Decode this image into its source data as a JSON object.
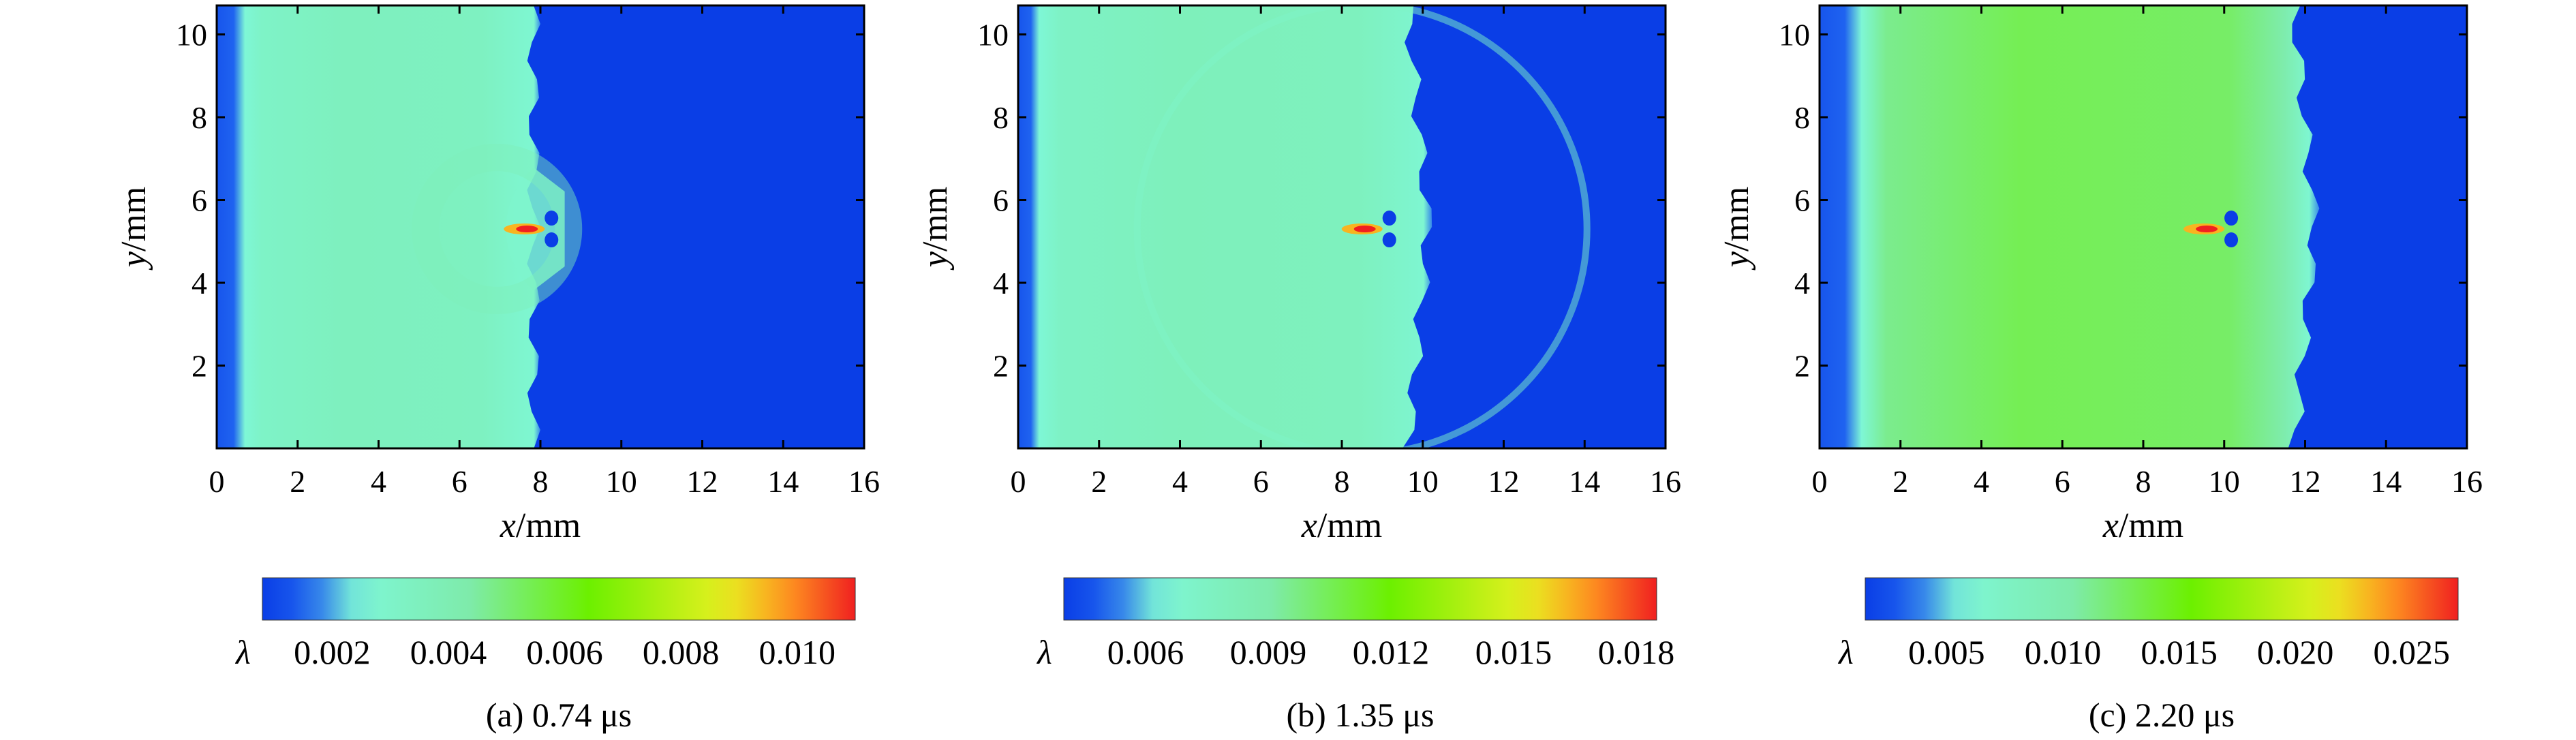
{
  "chart_data": [
    {
      "type": "heatmap",
      "caption": "(a) 0.74 μs",
      "xlabel": {
        "var": "x",
        "unit": "/mm"
      },
      "ylabel": {
        "var": "y",
        "unit": "/mm"
      },
      "xlim": [
        0,
        16
      ],
      "ylim": [
        0,
        10.7
      ],
      "xticks": [
        0,
        2,
        4,
        6,
        8,
        10,
        12,
        14,
        16
      ],
      "yticks": [
        2,
        4,
        6,
        8,
        10
      ],
      "colorbar": {
        "symbol": "λ",
        "ticks": [
          "0.002",
          "0.004",
          "0.006",
          "0.008",
          "0.010"
        ],
        "range": [
          0.0008,
          0.011
        ]
      },
      "field": {
        "background": 0.0,
        "band": {
          "x_start": 0,
          "x_end": 8.0,
          "value": 0.0035,
          "front_edge_x": 0.7
        },
        "shock_front_x": 8.0,
        "cap_x": 8.6,
        "crack_tip": {
          "x": 7.6,
          "y": 5.3
        }
      }
    },
    {
      "type": "heatmap",
      "caption": "(b) 1.35 μs",
      "xlabel": {
        "var": "x",
        "unit": "/mm"
      },
      "ylabel": {
        "var": "y",
        "unit": "/mm"
      },
      "xlim": [
        0,
        16
      ],
      "ylim": [
        0,
        10.7
      ],
      "xticks": [
        0,
        2,
        4,
        6,
        8,
        10,
        12,
        14,
        16
      ],
      "yticks": [
        2,
        4,
        6,
        8,
        10
      ],
      "colorbar": {
        "symbol": "λ",
        "ticks": [
          "0.006",
          "0.009",
          "0.012",
          "0.015",
          "0.018"
        ],
        "range": [
          0.004,
          0.0185
        ]
      },
      "field": {
        "background": 0.0,
        "band": {
          "x_start": 0,
          "x_end": 9.8,
          "value": 0.008,
          "front_edge_x": 0.5
        },
        "shock_front_x": 9.8,
        "crack_tip": {
          "x": 8.5,
          "y": 5.3
        }
      }
    },
    {
      "type": "heatmap",
      "caption": "(c) 2.20 μs",
      "xlabel": {
        "var": "x",
        "unit": "/mm"
      },
      "ylabel": {
        "var": "y",
        "unit": "/mm"
      },
      "xlim": [
        0,
        16
      ],
      "ylim": [
        0,
        10.7
      ],
      "xticks": [
        0,
        2,
        4,
        6,
        8,
        10,
        12,
        14,
        16
      ],
      "yticks": [
        2,
        4,
        6,
        8,
        10
      ],
      "colorbar": {
        "symbol": "λ",
        "ticks": [
          "0.005",
          "0.010",
          "0.015",
          "0.020",
          "0.025"
        ],
        "range": [
          0.0015,
          0.027
        ]
      },
      "field": {
        "background": 0.0,
        "band": {
          "x_start": 0,
          "x_end": 11.9,
          "value": 0.013,
          "front_edge_x": 1.0
        },
        "shock_front_x": 11.9,
        "crack_tip": {
          "x": 9.5,
          "y": 5.3
        }
      }
    }
  ],
  "colors": {
    "jet": [
      "#0a3ee6",
      "#1f63f0",
      "#7ef7d6",
      "#7ee6a0",
      "#6cf000",
      "#e6f020",
      "#ff9a20",
      "#f02020"
    ],
    "axis": "#000000"
  }
}
